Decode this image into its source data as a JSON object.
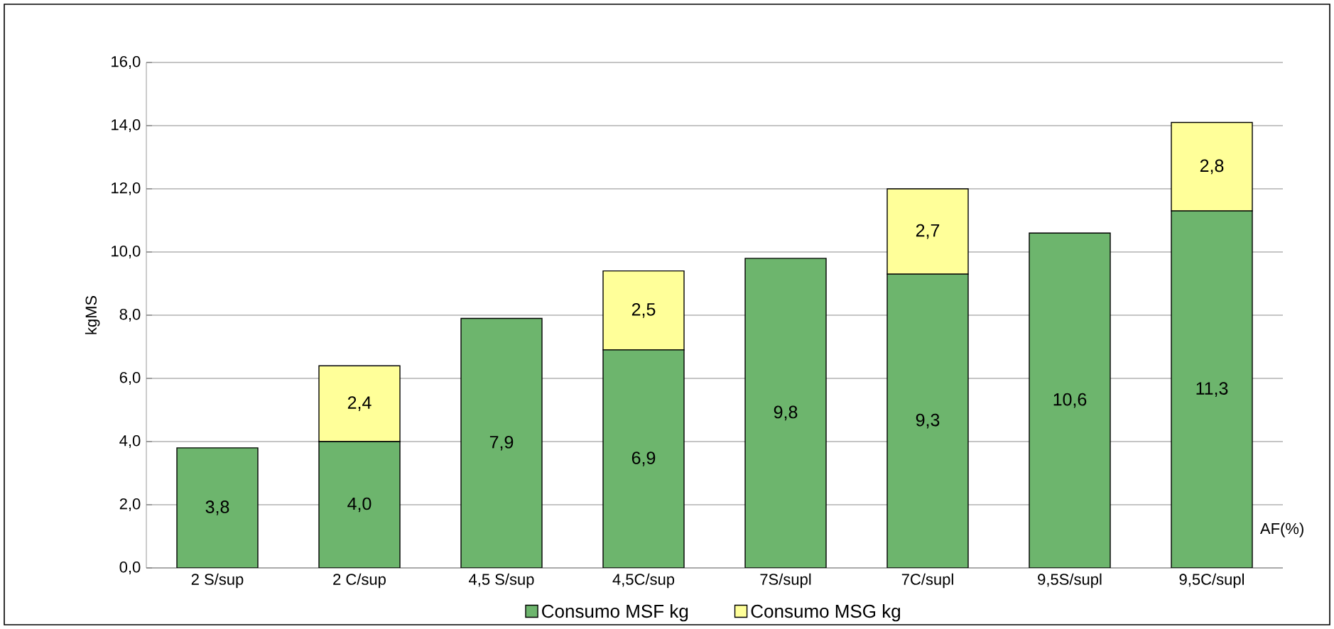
{
  "chart_data": {
    "type": "bar",
    "stacked": true,
    "ylabel": "kgMS",
    "xlabel": "AF(%)",
    "categories": [
      "2 S/sup",
      "2 C/sup",
      "4,5 S/sup",
      "4,5C/sup",
      "7S/supl",
      "7C/supl",
      "9,5S/supl",
      "9,5C/supl"
    ],
    "series": [
      {
        "name": "Consumo MSF kg",
        "color": "#6db56d",
        "values": [
          3.8,
          4.0,
          7.9,
          6.9,
          9.8,
          9.3,
          10.6,
          11.3
        ],
        "value_labels": [
          "3,8",
          "4,0",
          "7,9",
          "6,9",
          "9,8",
          "9,3",
          "10,6",
          "11,3"
        ]
      },
      {
        "name": "Consumo MSG kg",
        "color": "#ffff99",
        "values": [
          null,
          2.4,
          null,
          2.5,
          null,
          2.7,
          null,
          2.8
        ],
        "value_labels": [
          null,
          "2,4",
          null,
          "2,5",
          null,
          "2,7",
          null,
          "2,8"
        ]
      }
    ],
    "ylim": [
      0,
      16
    ],
    "yticks": [
      {
        "value": 0,
        "label": "0,0"
      },
      {
        "value": 2,
        "label": "2,0"
      },
      {
        "value": 4,
        "label": "4,0"
      },
      {
        "value": 6,
        "label": "6,0"
      },
      {
        "value": 8,
        "label": "8,0"
      },
      {
        "value": 10,
        "label": "10,0"
      },
      {
        "value": 12,
        "label": "12,0"
      },
      {
        "value": 14,
        "label": "14,0"
      },
      {
        "value": 16,
        "label": "16,0"
      }
    ],
    "grid": "y",
    "legend": "bottom"
  }
}
